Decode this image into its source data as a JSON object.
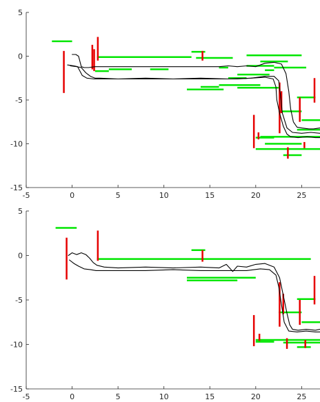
{
  "colors": {
    "horizontal_segments": "#00e600",
    "vertical_segments": "#e60000",
    "trajectory": "#000000",
    "axes": "#262626"
  },
  "chart_data": [
    {
      "type": "line",
      "xlim": [
        -5,
        27
      ],
      "ylim": [
        -15,
        5
      ],
      "x_ticks": [
        -5,
        0,
        5,
        10,
        15,
        20,
        25
      ],
      "y_ticks": [
        5,
        0,
        -5,
        -10,
        -15
      ],
      "grid": false,
      "horizontal_segments": [
        {
          "x1": -2.2,
          "x2": 0.0,
          "y": 1.7
        },
        {
          "x1": 2.7,
          "x2": 13.0,
          "y": -0.1
        },
        {
          "x1": 2.5,
          "x2": 4.0,
          "y": -1.7
        },
        {
          "x1": 4.0,
          "x2": 6.5,
          "y": -1.5
        },
        {
          "x1": 8.5,
          "x2": 10.5,
          "y": -1.5
        },
        {
          "x1": 13.0,
          "x2": 14.5,
          "y": 0.5
        },
        {
          "x1": 13.5,
          "x2": 17.5,
          "y": -0.2
        },
        {
          "x1": 16.0,
          "x2": 17.0,
          "y": -1.3
        },
        {
          "x1": 14.0,
          "x2": 16.0,
          "y": -3.5
        },
        {
          "x1": 12.5,
          "x2": 16.5,
          "y": -3.8
        },
        {
          "x1": 16.0,
          "x2": 20.5,
          "y": -3.3
        },
        {
          "x1": 17.0,
          "x2": 19.0,
          "y": -2.5
        },
        {
          "x1": 18.0,
          "x2": 21.5,
          "y": -2.1
        },
        {
          "x1": 18.0,
          "x2": 22.5,
          "y": -3.6
        },
        {
          "x1": 19.0,
          "x2": 22.0,
          "y": -1.1
        },
        {
          "x1": 21.0,
          "x2": 22.0,
          "y": -1.6
        },
        {
          "x1": 22.0,
          "x2": 25.5,
          "y": -1.3
        },
        {
          "x1": 19.0,
          "x2": 25.0,
          "y": 0.1
        },
        {
          "x1": 20.5,
          "x2": 23.5,
          "y": -0.6
        },
        {
          "x1": 22.5,
          "x2": 25.0,
          "y": -6.3
        },
        {
          "x1": 24.5,
          "x2": 26.5,
          "y": -4.7
        },
        {
          "x1": 25.0,
          "x2": 27.0,
          "y": -7.3
        },
        {
          "x1": 20.5,
          "x2": 27.0,
          "y": -9.2
        },
        {
          "x1": 24.5,
          "x2": 27.0,
          "y": -8.4
        },
        {
          "x1": 23.0,
          "x2": 25.0,
          "y": -11.3
        },
        {
          "x1": 20.0,
          "x2": 27.0,
          "y": -10.6
        },
        {
          "x1": 21.0,
          "x2": 25.0,
          "y": -10.0
        },
        {
          "x1": 20.0,
          "x2": 22.0,
          "y": -9.3
        }
      ],
      "vertical_segments": [
        {
          "x": -0.9,
          "y1": 0.6,
          "y2": -4.2
        },
        {
          "x": 2.2,
          "y1": 1.3,
          "y2": -1.5
        },
        {
          "x": 2.4,
          "y1": 0.8,
          "y2": -1.7
        },
        {
          "x": 2.8,
          "y1": 2.2,
          "y2": -0.5
        },
        {
          "x": 14.2,
          "y1": 0.6,
          "y2": -0.5
        },
        {
          "x": 19.8,
          "y1": -6.7,
          "y2": -10.5
        },
        {
          "x": 20.3,
          "y1": -8.7,
          "y2": -9.5
        },
        {
          "x": 22.6,
          "y1": -3.0,
          "y2": -8.8
        },
        {
          "x": 22.8,
          "y1": -4.0,
          "y2": -6.5
        },
        {
          "x": 24.8,
          "y1": -4.7,
          "y2": -7.5
        },
        {
          "x": 25.3,
          "y1": -9.8,
          "y2": -10.5
        },
        {
          "x": 23.5,
          "y1": -10.4,
          "y2": -11.7
        },
        {
          "x": 26.4,
          "y1": -2.5,
          "y2": -5.3
        }
      ],
      "trajectories": [
        {
          "x": [
            0.0,
            0.4,
            0.7,
            1.0,
            1.3,
            1.8,
            2.5,
            4.0,
            6.0,
            8.0,
            10.0,
            12.0,
            14.0,
            16.0,
            17.0,
            18.0,
            19.0,
            20.0,
            21.0,
            22.0,
            22.8,
            23.3,
            23.6,
            23.8,
            24.1,
            24.5,
            25.0,
            25.8,
            26.3,
            27.0
          ],
          "y": [
            0.2,
            0.2,
            0.0,
            -1.2,
            -1.3,
            -1.3,
            -1.2,
            -1.2,
            -1.2,
            -1.2,
            -1.2,
            -1.2,
            -1.2,
            -1.2,
            -1.1,
            -1.2,
            -1.1,
            -1.2,
            -0.8,
            -0.7,
            -0.9,
            -2.0,
            -4.0,
            -6.0,
            -7.5,
            -8.1,
            -8.2,
            -8.3,
            -8.3,
            -8.2
          ]
        },
        {
          "x": [
            -0.5,
            0.2,
            0.6,
            0.8,
            1.1,
            1.6,
            2.4,
            3.5,
            5.0,
            7.0,
            9.0,
            11.0,
            13.0,
            15.0,
            16.5,
            18.0,
            19.5,
            21.0,
            21.9,
            22.2,
            22.3,
            22.6,
            23.0,
            23.4,
            23.8,
            24.6,
            25.6,
            26.5,
            27.0
          ],
          "y": [
            -1.0,
            -1.1,
            -1.2,
            -1.6,
            -2.2,
            -2.5,
            -2.6,
            -2.6,
            -2.6,
            -2.6,
            -2.6,
            -2.6,
            -2.6,
            -2.6,
            -2.6,
            -2.6,
            -2.5,
            -2.4,
            -2.6,
            -3.5,
            -5.0,
            -6.5,
            -8.0,
            -8.9,
            -9.2,
            -9.3,
            -9.2,
            -9.3,
            -9.3
          ]
        },
        {
          "x": [
            -0.2,
            0.5,
            1.0,
            1.5,
            2.0,
            2.5,
            3.0,
            5.0,
            8.0,
            11.0,
            14.0,
            17.0,
            19.5,
            21.0,
            22.0,
            22.5,
            22.7,
            22.9,
            23.4,
            24.0,
            25.0,
            26.0,
            27.0
          ],
          "y": [
            -1.1,
            -1.2,
            -1.3,
            -1.9,
            -2.3,
            -2.5,
            -2.5,
            -2.6,
            -2.5,
            -2.6,
            -2.5,
            -2.6,
            -2.5,
            -2.3,
            -2.3,
            -2.8,
            -4.5,
            -6.5,
            -8.2,
            -8.7,
            -8.8,
            -8.7,
            -8.8
          ]
        }
      ]
    },
    {
      "type": "line",
      "xlim": [
        -5,
        27
      ],
      "ylim": [
        -15,
        5
      ],
      "x_ticks": [
        -5,
        0,
        5,
        10,
        15,
        20,
        25
      ],
      "y_ticks": [
        5,
        0,
        -5,
        -10,
        -15
      ],
      "grid": false,
      "horizontal_segments": [
        {
          "x1": -1.8,
          "x2": 0.5,
          "y": 3.1
        },
        {
          "x1": 2.7,
          "x2": 26.0,
          "y": -0.4
        },
        {
          "x1": 13.0,
          "x2": 14.5,
          "y": 0.6
        },
        {
          "x1": 12.5,
          "x2": 20.0,
          "y": -2.5
        },
        {
          "x1": 12.5,
          "x2": 18.0,
          "y": -2.8
        },
        {
          "x1": 22.5,
          "x2": 25.0,
          "y": -6.4
        },
        {
          "x1": 24.5,
          "x2": 26.5,
          "y": -4.9
        },
        {
          "x1": 25.0,
          "x2": 27.0,
          "y": -7.5
        },
        {
          "x1": 20.0,
          "x2": 27.0,
          "y": -9.5
        },
        {
          "x1": 23.0,
          "x2": 27.0,
          "y": -9.8
        },
        {
          "x1": 24.5,
          "x2": 26.0,
          "y": -10.3
        },
        {
          "x1": 20.0,
          "x2": 22.0,
          "y": -9.7
        }
      ],
      "vertical_segments": [
        {
          "x": -0.6,
          "y1": 2.0,
          "y2": -2.7
        },
        {
          "x": 2.8,
          "y1": 2.8,
          "y2": -0.6
        },
        {
          "x": 14.2,
          "y1": 0.6,
          "y2": -0.7
        },
        {
          "x": 19.8,
          "y1": -6.7,
          "y2": -10.2
        },
        {
          "x": 20.4,
          "y1": -8.8,
          "y2": -9.6
        },
        {
          "x": 22.6,
          "y1": -3.0,
          "y2": -8.0
        },
        {
          "x": 23.0,
          "y1": -4.3,
          "y2": -6.6
        },
        {
          "x": 24.8,
          "y1": -5.0,
          "y2": -7.8
        },
        {
          "x": 23.4,
          "y1": -9.3,
          "y2": -10.5
        },
        {
          "x": 25.4,
          "y1": -9.5,
          "y2": -10.4
        },
        {
          "x": 26.4,
          "y1": -2.3,
          "y2": -5.5
        }
      ],
      "trajectories": [
        {
          "x": [
            -0.4,
            0.0,
            0.5,
            1.0,
            1.5,
            1.9,
            2.3,
            2.7,
            3.5,
            5.0,
            8.0,
            11.0,
            14.0,
            16.0,
            16.8,
            17.5,
            18.0,
            19.0,
            20.0,
            21.0,
            22.0,
            22.6,
            23.0,
            23.4,
            23.7,
            24.0,
            24.6,
            25.5,
            26.5,
            27.0
          ],
          "y": [
            0.0,
            0.3,
            0.1,
            0.3,
            0.1,
            -0.3,
            -0.8,
            -1.1,
            -1.3,
            -1.4,
            -1.3,
            -1.4,
            -1.3,
            -1.4,
            -1.0,
            -1.8,
            -1.2,
            -1.3,
            -1.0,
            -0.9,
            -1.3,
            -2.5,
            -4.5,
            -6.5,
            -7.8,
            -8.3,
            -8.4,
            -8.3,
            -8.4,
            -8.3
          ]
        },
        {
          "x": [
            -0.3,
            0.2,
            0.7,
            1.3,
            2.0,
            2.6,
            3.2,
            5.0,
            8.0,
            11.0,
            14.0,
            17.0,
            19.0,
            20.5,
            21.5,
            22.2,
            22.5,
            22.8,
            23.1,
            23.6,
            24.5,
            25.5,
            26.5,
            27.0
          ],
          "y": [
            -0.5,
            -0.9,
            -1.2,
            -1.5,
            -1.6,
            -1.7,
            -1.7,
            -1.7,
            -1.7,
            -1.6,
            -1.7,
            -1.7,
            -1.7,
            -1.5,
            -1.6,
            -2.2,
            -3.5,
            -5.5,
            -7.5,
            -8.5,
            -8.6,
            -8.5,
            -8.6,
            -8.6
          ]
        }
      ]
    }
  ]
}
